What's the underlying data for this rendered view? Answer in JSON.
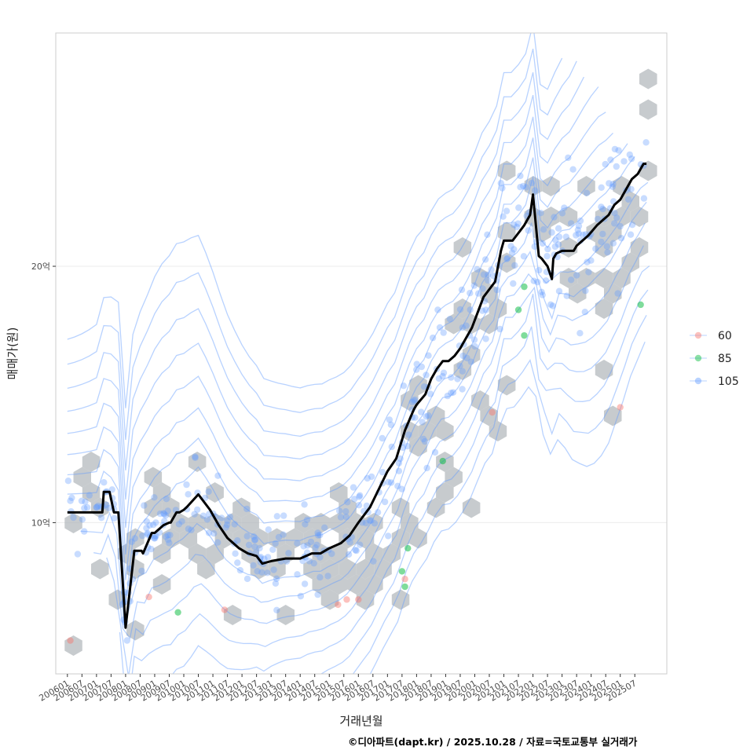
{
  "chart_data": {
    "type": "scatter",
    "title": "",
    "xlabel": "거래년월",
    "ylabel": "매매가(원)",
    "caption": "©디아파트(dapt.kr) / 2025.10.28 / 자료=국토교통부 실거래가",
    "x_range": [
      2005.6,
      2026.6
    ],
    "y_range": [
      4.1,
      29.1
    ],
    "y_unit": "억",
    "y_ticks": [
      {
        "value": 10,
        "label": "10억"
      },
      {
        "value": 20,
        "label": "20억"
      }
    ],
    "x_ticks": [
      {
        "value": 2006.0,
        "label": "200601"
      },
      {
        "value": 2006.5,
        "label": "200607"
      },
      {
        "value": 2007.0,
        "label": "200701"
      },
      {
        "value": 2007.5,
        "label": "200707"
      },
      {
        "value": 2008.0,
        "label": "200801"
      },
      {
        "value": 2008.5,
        "label": "200807"
      },
      {
        "value": 2009.0,
        "label": "200901"
      },
      {
        "value": 2009.5,
        "label": "200907"
      },
      {
        "value": 2010.0,
        "label": "201001"
      },
      {
        "value": 2010.5,
        "label": "201007"
      },
      {
        "value": 2011.0,
        "label": "201101"
      },
      {
        "value": 2011.5,
        "label": "201107"
      },
      {
        "value": 2012.0,
        "label": "201201"
      },
      {
        "value": 2012.5,
        "label": "201207"
      },
      {
        "value": 2013.0,
        "label": "201301"
      },
      {
        "value": 2013.5,
        "label": "201307"
      },
      {
        "value": 2014.0,
        "label": "201401"
      },
      {
        "value": 2014.5,
        "label": "201407"
      },
      {
        "value": 2015.0,
        "label": "201501"
      },
      {
        "value": 2015.5,
        "label": "201507"
      },
      {
        "value": 2016.0,
        "label": "201601"
      },
      {
        "value": 2016.5,
        "label": "201607"
      },
      {
        "value": 2017.0,
        "label": "201701"
      },
      {
        "value": 2017.5,
        "label": "201707"
      },
      {
        "value": 2018.0,
        "label": "201801"
      },
      {
        "value": 2018.5,
        "label": "201807"
      },
      {
        "value": 2019.0,
        "label": "201901"
      },
      {
        "value": 2019.5,
        "label": "201907"
      },
      {
        "value": 2020.0,
        "label": "202001"
      },
      {
        "value": 2020.5,
        "label": "202007"
      },
      {
        "value": 2021.0,
        "label": "202101"
      },
      {
        "value": 2021.5,
        "label": "202107"
      },
      {
        "value": 2022.0,
        "label": "202201"
      },
      {
        "value": 2022.5,
        "label": "202207"
      },
      {
        "value": 2023.0,
        "label": "202301"
      },
      {
        "value": 2023.5,
        "label": "202307"
      },
      {
        "value": 2024.0,
        "label": "202401"
      },
      {
        "value": 2024.5,
        "label": "202407"
      },
      {
        "value": 2025.0,
        "label": "202501"
      },
      {
        "value": 2025.5,
        "label": "202507"
      }
    ],
    "legend": {
      "placement": "right",
      "entries": [
        {
          "label": "60",
          "color": "#f8766d"
        },
        {
          "label": "85",
          "color": "#00ba38"
        },
        {
          "label": "105",
          "color": "#619cff"
        }
      ]
    },
    "colors": {
      "hex_fill": "#b4b9bd",
      "contour": "#619cff",
      "trend": "#000000",
      "grid": "#ebebeb",
      "panel_border": "#cccccc"
    },
    "trend_line": {
      "name": "median",
      "x": [
        2006.0,
        2006.8,
        2006.85,
        2007.2,
        2007.25,
        2007.45,
        2007.6,
        2007.75,
        2008.0,
        2008.3,
        2008.45,
        2008.55,
        2008.6,
        2008.9,
        2009.0,
        2009.2,
        2009.3,
        2009.5,
        2009.55,
        2009.75,
        2009.85,
        2010.0,
        2010.1,
        2010.5,
        2010.9,
        2011.2,
        2011.5,
        2011.9,
        2012.2,
        2012.5,
        2012.7,
        2013.0,
        2013.5,
        2014.0,
        2014.4,
        2014.7,
        2015.0,
        2015.4,
        2015.7,
        2016.0,
        2016.4,
        2016.7,
        2017.0,
        2017.3,
        2017.6,
        2017.9,
        2018.0,
        2018.3,
        2018.5,
        2018.7,
        2018.9,
        2019.1,
        2019.3,
        2019.5,
        2019.7,
        2019.9,
        2020.1,
        2020.3,
        2020.5,
        2020.7,
        2020.9,
        2021.0,
        2021.1,
        2021.3,
        2021.5,
        2021.7,
        2021.9,
        2022.0,
        2022.1,
        2022.2,
        2022.3,
        2022.5,
        2022.65,
        2022.7,
        2022.8,
        2023.0,
        2023.2,
        2023.4,
        2023.5,
        2023.7,
        2023.9,
        2024.2,
        2024.4,
        2024.6,
        2024.8,
        2025.0,
        2025.2,
        2025.4,
        2025.6,
        2025.8,
        2025.9
      ],
      "y": [
        10.4,
        10.4,
        10.4,
        10.4,
        11.2,
        11.2,
        10.4,
        10.4,
        5.9,
        8.9,
        8.9,
        8.9,
        8.8,
        9.6,
        9.6,
        9.8,
        9.9,
        10.0,
        10.0,
        10.4,
        10.4,
        10.5,
        10.6,
        11.1,
        10.5,
        9.9,
        9.4,
        9.0,
        8.8,
        8.7,
        8.4,
        8.5,
        8.6,
        8.6,
        8.8,
        8.8,
        9.0,
        9.2,
        9.5,
        10.0,
        10.6,
        11.3,
        12.0,
        12.5,
        13.6,
        14.4,
        14.6,
        15.0,
        15.6,
        16.0,
        16.3,
        16.3,
        16.5,
        16.8,
        17.2,
        17.6,
        18.2,
        18.8,
        19.1,
        19.4,
        20.6,
        21.0,
        21.0,
        21.0,
        21.3,
        21.6,
        22.0,
        22.8,
        21.6,
        20.4,
        20.3,
        20.0,
        19.5,
        20.3,
        20.5,
        20.6,
        20.6,
        20.6,
        20.8,
        21.0,
        21.2,
        21.6,
        21.8,
        22.0,
        22.4,
        22.6,
        23.0,
        23.4,
        23.6,
        24.0,
        24.0
      ]
    },
    "hexbins": {
      "count": 180,
      "clusters": [
        {
          "cx": 2006.9,
          "cy": 10.9,
          "sx": 0.4,
          "sy": 1.2,
          "n": 6
        },
        {
          "cx": 2008.2,
          "cy": 8.6,
          "sx": 0.3,
          "sy": 1.3,
          "n": 6
        },
        {
          "cx": 2009.6,
          "cy": 11.0,
          "sx": 0.6,
          "sy": 1.3,
          "n": 12
        },
        {
          "cx": 2011.6,
          "cy": 9.2,
          "sx": 0.8,
          "sy": 0.9,
          "n": 14
        },
        {
          "cx": 2013.5,
          "cy": 8.5,
          "sx": 0.7,
          "sy": 0.7,
          "n": 10
        },
        {
          "cx": 2015.8,
          "cy": 8.9,
          "sx": 0.9,
          "sy": 1.0,
          "n": 30
        },
        {
          "cx": 2018.2,
          "cy": 12.0,
          "sx": 0.7,
          "sy": 2.0,
          "n": 16
        },
        {
          "cx": 2020.3,
          "cy": 17.0,
          "sx": 0.7,
          "sy": 1.8,
          "n": 16
        },
        {
          "cx": 2021.8,
          "cy": 22.0,
          "sx": 0.5,
          "sy": 1.4,
          "n": 8
        },
        {
          "cx": 2024.3,
          "cy": 21.3,
          "sx": 0.9,
          "sy": 1.8,
          "n": 32
        },
        {
          "cx": 2025.9,
          "cy": 26.3,
          "sx": 0.1,
          "sy": 1.0,
          "n": 3
        }
      ]
    },
    "points_60": [
      {
        "x": 2006.1,
        "y": 5.4
      },
      {
        "x": 2008.8,
        "y": 7.1
      },
      {
        "x": 2011.4,
        "y": 6.6
      },
      {
        "x": 2015.3,
        "y": 6.8
      },
      {
        "x": 2015.6,
        "y": 7.0
      },
      {
        "x": 2016.0,
        "y": 7.0
      },
      {
        "x": 2017.6,
        "y": 7.8
      },
      {
        "x": 2020.6,
        "y": 14.3
      },
      {
        "x": 2025.0,
        "y": 14.5
      }
    ],
    "points_85": [
      {
        "x": 2009.8,
        "y": 6.5
      },
      {
        "x": 2017.5,
        "y": 8.1
      },
      {
        "x": 2017.6,
        "y": 7.5
      },
      {
        "x": 2017.7,
        "y": 9.0
      },
      {
        "x": 2018.9,
        "y": 12.4
      },
      {
        "x": 2021.5,
        "y": 18.3
      },
      {
        "x": 2021.7,
        "y": 19.2
      },
      {
        "x": 2021.7,
        "y": 17.3
      },
      {
        "x": 2025.7,
        "y": 18.5
      }
    ],
    "points_105_count": 420
  }
}
